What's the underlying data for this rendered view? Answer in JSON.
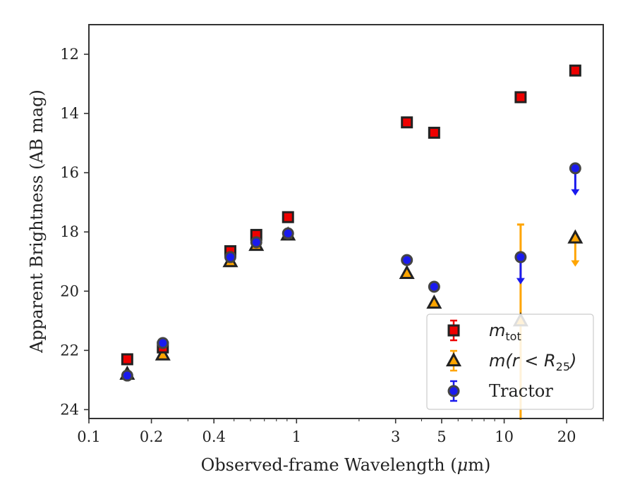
{
  "chart_data": {
    "type": "scatter",
    "xlabel_parts": [
      "Observed-frame Wavelength (",
      "μ",
      "m)"
    ],
    "ylabel": "Apparent Brightness (AB mag)",
    "xscale": "log",
    "xlim": [
      0.1,
      30
    ],
    "ylim": [
      24.3,
      11.0
    ],
    "y_inverted": true,
    "x_ticks": [
      0.1,
      0.2,
      0.4,
      1,
      3,
      5,
      10,
      20
    ],
    "x_tick_labels": [
      "0.1",
      "0.2",
      "0.4",
      "1",
      "3",
      "5",
      "10",
      "20"
    ],
    "y_ticks": [
      12,
      14,
      16,
      18,
      20,
      22,
      24
    ],
    "y_tick_labels": [
      "12",
      "14",
      "16",
      "18",
      "20",
      "22",
      "24"
    ],
    "grid": false,
    "legend_position": "bottom-right",
    "series": [
      {
        "key": "mtot",
        "legend_base": "m",
        "legend_sub": "tot",
        "marker": "square",
        "color": "#ee0000",
        "edge": "#222222",
        "points": [
          {
            "x": 0.153,
            "y": 22.3
          },
          {
            "x": 0.227,
            "y": 21.9
          },
          {
            "x": 0.48,
            "y": 18.65
          },
          {
            "x": 0.64,
            "y": 18.1
          },
          {
            "x": 0.91,
            "y": 17.5
          },
          {
            "x": 3.4,
            "y": 14.3
          },
          {
            "x": 4.6,
            "y": 14.65
          },
          {
            "x": 12.0,
            "y": 13.45
          },
          {
            "x": 22.0,
            "y": 12.55
          }
        ]
      },
      {
        "key": "mr25",
        "legend_base": "m(r < R",
        "legend_sub": "25",
        "legend_tail": ")",
        "marker": "triangle",
        "color": "#ffa500",
        "edge": "#222222",
        "points": [
          {
            "x": 0.153,
            "y": 22.8
          },
          {
            "x": 0.227,
            "y": 22.15
          },
          {
            "x": 0.48,
            "y": 19.0
          },
          {
            "x": 0.64,
            "y": 18.45
          },
          {
            "x": 0.91,
            "y": 18.1
          },
          {
            "x": 3.4,
            "y": 19.4
          },
          {
            "x": 4.6,
            "y": 20.4
          },
          {
            "x": 12.0,
            "y": 21.0,
            "yerr_low": 17.75,
            "yerr_high": 24.5
          },
          {
            "x": 22.0,
            "y": 18.2,
            "upper_limit_to": 19.1
          }
        ]
      },
      {
        "key": "tractor",
        "legend_base": "Tractor",
        "marker": "circle",
        "color": "#1a1aee",
        "edge": "#444444",
        "points": [
          {
            "x": 0.153,
            "y": 22.85
          },
          {
            "x": 0.227,
            "y": 21.75
          },
          {
            "x": 0.48,
            "y": 18.85
          },
          {
            "x": 0.64,
            "y": 18.35
          },
          {
            "x": 0.91,
            "y": 18.05
          },
          {
            "x": 3.4,
            "y": 18.95
          },
          {
            "x": 4.6,
            "y": 19.85
          },
          {
            "x": 12.0,
            "y": 18.85,
            "upper_limit_to": 19.7
          },
          {
            "x": 22.0,
            "y": 15.85,
            "upper_limit_to": 16.7
          }
        ]
      }
    ]
  }
}
